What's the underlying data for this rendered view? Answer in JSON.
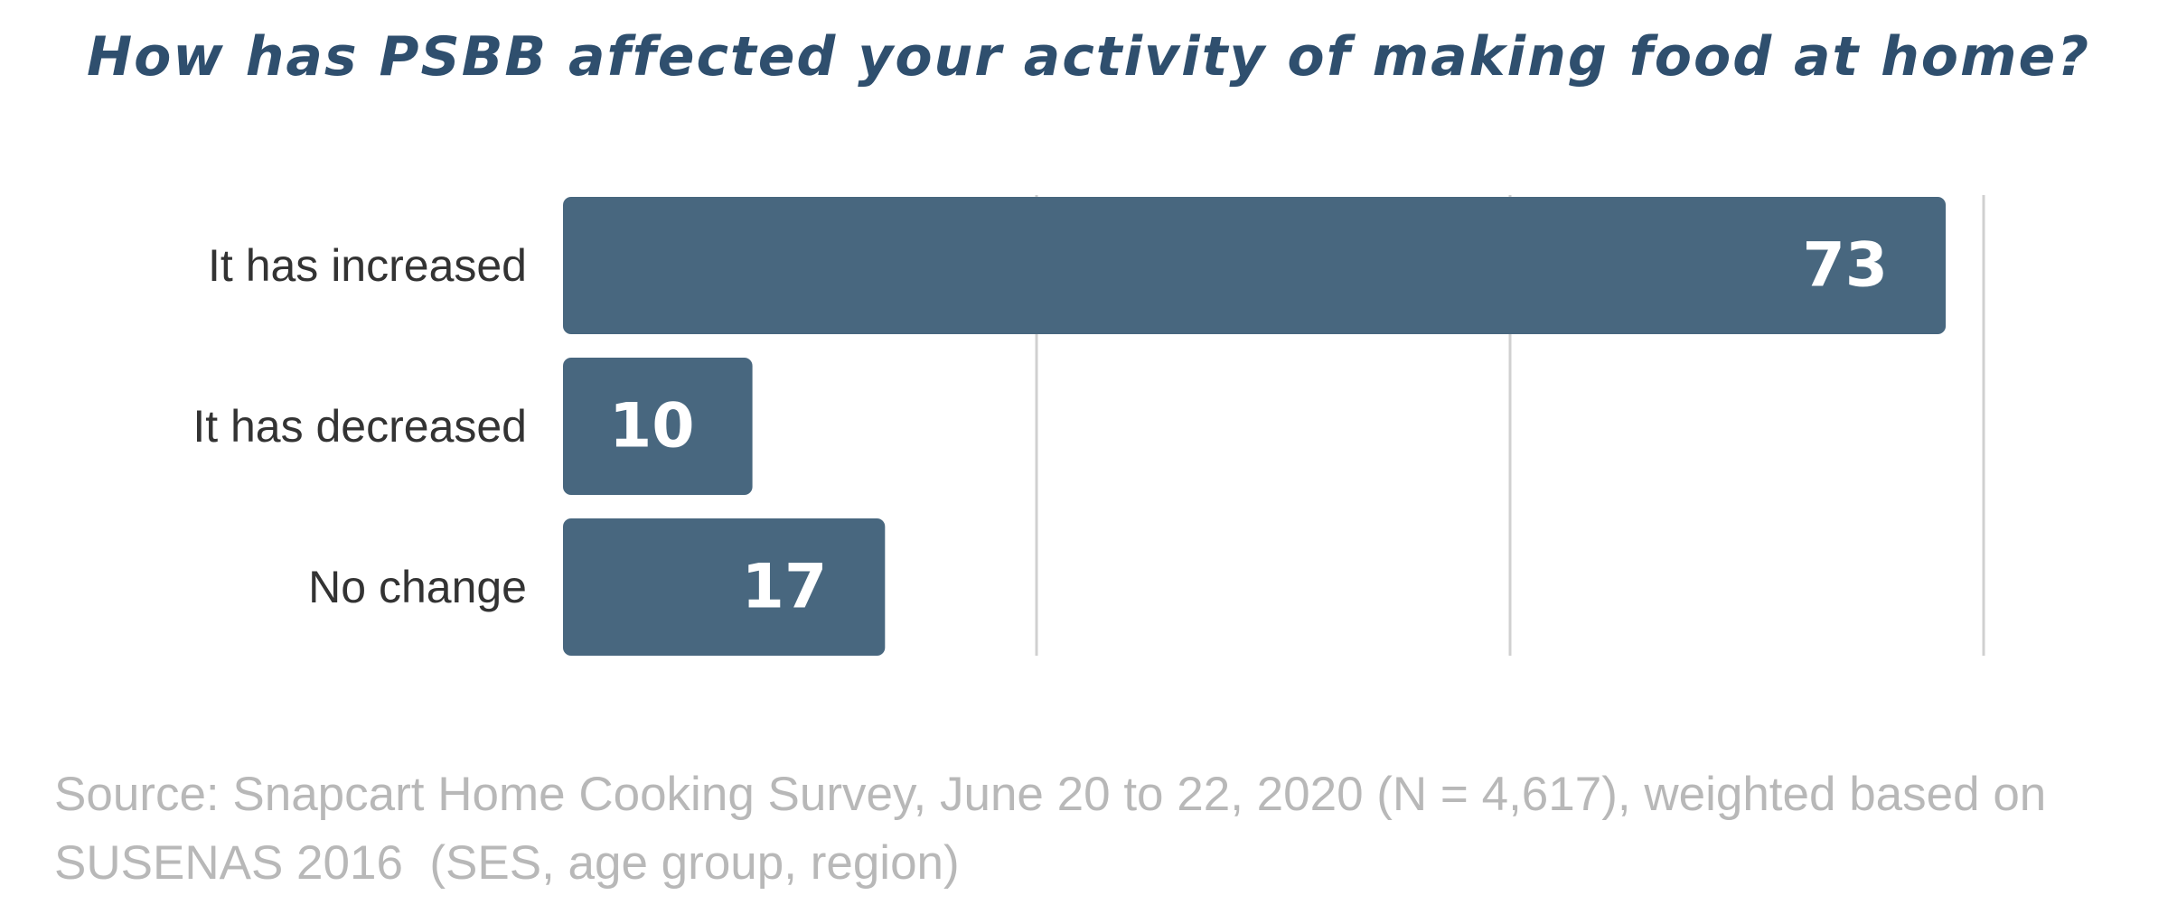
{
  "chart_data": {
    "type": "bar",
    "orientation": "horizontal",
    "title": "How has PSBB affected your activity of making food at home?",
    "categories": [
      "It has increased",
      "It has decreased",
      "No change"
    ],
    "values": [
      73,
      10,
      17
    ],
    "value_labels": [
      "73",
      "10",
      "17"
    ],
    "xlim": [
      0,
      75
    ],
    "gridlines": [
      25,
      50,
      75
    ],
    "grid": true,
    "bar_color": "#48677f",
    "gridline_color": "#d0d0d0"
  },
  "source": {
    "line1": "Source: Snapcart Home Cooking Survey, June 20 to 22, 2020 (N = 4,617), weighted based on",
    "line2": "SUSENAS 2016  (SES, age group, region)"
  }
}
